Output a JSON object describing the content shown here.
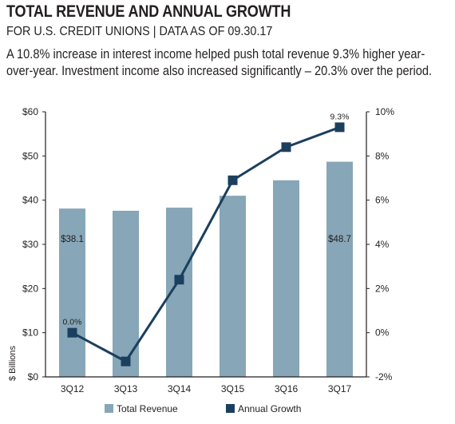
{
  "header": {
    "title": "TOTAL REVENUE AND ANNUAL GROWTH",
    "subtitle": "FOR U.S. CREDIT UNIONS | DATA AS OF 09.30.17",
    "description": "A 10.8% increase in interest income helped push total revenue 9.3% higher year-over-year. Investment income also increased significantly – 20.3% over the period."
  },
  "chart_data": {
    "type": "bar",
    "categories": [
      "3Q12",
      "3Q13",
      "3Q14",
      "3Q15",
      "3Q16",
      "3Q17"
    ],
    "series": [
      {
        "name": "Total Revenue",
        "type": "bar",
        "axis": "left",
        "values": [
          38.1,
          37.6,
          38.3,
          41.0,
          44.5,
          48.7
        ],
        "color": "#87a6b7"
      },
      {
        "name": "Annual Growth",
        "type": "line",
        "axis": "right",
        "values": [
          0.0,
          -1.3,
          2.4,
          6.9,
          8.4,
          9.3
        ],
        "color": "#1b3f5e"
      }
    ],
    "data_labels": [
      {
        "series": "Total Revenue",
        "index": 0,
        "text": "$38.1"
      },
      {
        "series": "Total Revenue",
        "index": 5,
        "text": "$48.7"
      },
      {
        "series": "Annual Growth",
        "index": 0,
        "text": "0.0%"
      },
      {
        "series": "Annual Growth",
        "index": 5,
        "text": "9.3%"
      }
    ],
    "y_left": {
      "label": "$ Billions",
      "ylim": [
        0,
        60
      ],
      "ticks": [
        0,
        10,
        20,
        30,
        40,
        50,
        60
      ],
      "tick_labels": [
        "$0",
        "$10",
        "$20",
        "$30",
        "$40",
        "$50",
        "$60"
      ]
    },
    "y_right": {
      "ylim": [
        -2,
        10
      ],
      "ticks": [
        -2,
        0,
        2,
        4,
        6,
        8,
        10
      ],
      "tick_labels": [
        "-2%",
        "0%",
        "2%",
        "4%",
        "6%",
        "8%",
        "10%"
      ]
    },
    "grid": false,
    "legend": "bottom"
  }
}
